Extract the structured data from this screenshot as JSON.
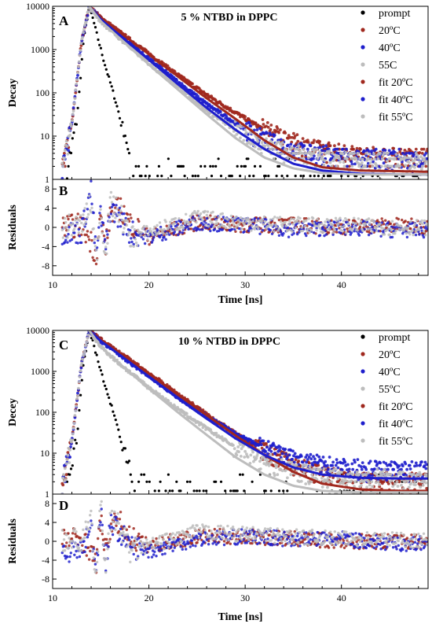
{
  "chart_data": [
    {
      "type": "scatter",
      "panel_label": "A",
      "title": "5 % NTBD in DPPC",
      "xlabel": "",
      "ylabel": "Decay",
      "yscale": "log",
      "xlim": [
        10,
        49
      ],
      "ylim": [
        1,
        10000
      ],
      "yticks": [
        "1",
        "10",
        "100",
        "1000",
        "10000"
      ],
      "legend": {
        "placement": "top-right",
        "entries": [
          {
            "label": "prompt",
            "color": "#000000"
          },
          {
            "label": "20ºC",
            "color": "#a0281e"
          },
          {
            "label": "40ºC",
            "color": "#1e1ecc"
          },
          {
            "label": "55C",
            "color": "#bdbdbd"
          },
          {
            "label": "fit 20ºC",
            "color": "#a0281e"
          },
          {
            "label": "fit 40ºC",
            "color": "#1e1ecc"
          },
          {
            "label": "fit 55ºC",
            "color": "#bdbdbd"
          }
        ]
      },
      "series": [
        {
          "name": "prompt",
          "color": "#000000",
          "x": [
            11.5,
            12.5,
            13.2,
            13.8,
            14.2,
            14.8,
            15.5,
            16.2,
            16.8,
            17.3,
            17.8,
            18.3,
            19,
            20,
            22,
            25,
            28,
            32,
            36,
            40,
            45,
            48
          ],
          "y": [
            1.5,
            20,
            1500,
            10000,
            5000,
            1500,
            400,
            120,
            40,
            12,
            5,
            3,
            2.5,
            2.2,
            2,
            2.2,
            2,
            2.2,
            2,
            2,
            2,
            2
          ]
        },
        {
          "name": "20ºC",
          "color": "#a0281e",
          "x": [
            11,
            12,
            13,
            13.8,
            15,
            17,
            20,
            23,
            26,
            29,
            32,
            35,
            38,
            42,
            46,
            49
          ],
          "y": [
            1.5,
            20,
            1500,
            10000,
            5500,
            2500,
            800,
            260,
            90,
            35,
            14,
            7,
            4.5,
            3.5,
            3.2,
            3
          ]
        },
        {
          "name": "40ºC",
          "color": "#1e1ecc",
          "x": [
            11,
            12,
            13,
            13.8,
            15,
            17,
            20,
            23,
            26,
            29,
            32,
            35,
            38,
            42,
            46,
            49
          ],
          "y": [
            1.5,
            20,
            1500,
            10000,
            5000,
            2100,
            600,
            180,
            55,
            20,
            8,
            4.5,
            3.5,
            3,
            2.8,
            2.7
          ]
        },
        {
          "name": "55C",
          "color": "#bdbdbd",
          "x": [
            11,
            12,
            13,
            13.8,
            15,
            17,
            20,
            23,
            26,
            29,
            32,
            35,
            38,
            42,
            46,
            49
          ],
          "y": [
            1.5,
            20,
            1500,
            10000,
            4500,
            1800,
            480,
            140,
            40,
            14,
            6,
            3.5,
            2.8,
            2.5,
            2.4,
            2.3
          ]
        },
        {
          "name": "fit 20ºC",
          "color": "#a0281e",
          "x": [
            13.8,
            15,
            17,
            20,
            23,
            26,
            29,
            32,
            35,
            38,
            42,
            46,
            49
          ],
          "y": [
            10000,
            5500,
            2500,
            780,
            240,
            75,
            25,
            8,
            3.2,
            1.9,
            1.6,
            1.55,
            1.5
          ]
        },
        {
          "name": "fit 40ºC",
          "color": "#1e1ecc",
          "x": [
            13.8,
            15,
            17,
            20,
            23,
            26,
            29,
            32,
            35,
            38,
            42,
            46,
            49
          ],
          "y": [
            10000,
            5000,
            2100,
            580,
            160,
            45,
            14,
            5,
            2.3,
            1.6,
            1.35,
            1.3,
            1.3
          ]
        },
        {
          "name": "fit 55ºC",
          "color": "#bdbdbd",
          "x": [
            13.8,
            15,
            17,
            20,
            23,
            26,
            29,
            32,
            35,
            38,
            42,
            46,
            49
          ],
          "y": [
            10000,
            4500,
            1800,
            450,
            120,
            32,
            9,
            3.2,
            1.8,
            1.4,
            1.3,
            1.3,
            1.3
          ]
        }
      ]
    },
    {
      "type": "scatter",
      "panel_label": "B",
      "xlabel": "Time [ns]",
      "ylabel": "Residuals",
      "xlim": [
        10,
        49
      ],
      "ylim": [
        -10,
        10
      ],
      "xticks": [
        10,
        20,
        30,
        40
      ],
      "yticks": [
        -8,
        -4,
        0,
        4,
        8
      ],
      "series": [
        {
          "name": "20ºC",
          "color": "#a0281e",
          "x": [
            11,
            13,
            14,
            14.5,
            15,
            15.5,
            16,
            17,
            18,
            20,
            25,
            30,
            35,
            40,
            45,
            49
          ],
          "y": [
            0,
            0.5,
            -3,
            -6,
            2,
            -4,
            3,
            4,
            1,
            -2,
            1,
            0.5,
            0.5,
            0,
            0.5,
            0
          ]
        },
        {
          "name": "40ºC",
          "color": "#1e1ecc",
          "x": [
            11,
            13,
            14,
            14.5,
            15,
            15.5,
            16,
            17,
            18,
            20,
            25,
            30,
            35,
            40,
            45,
            49
          ],
          "y": [
            -1,
            -1,
            8,
            -6,
            3,
            -5,
            4,
            2,
            -1,
            -2,
            1,
            0.5,
            -0.5,
            0,
            -0.5,
            -0.5
          ]
        },
        {
          "name": "55C",
          "color": "#bdbdbd",
          "x": [
            11,
            13,
            14,
            14.5,
            15,
            15.5,
            16,
            17,
            18,
            20,
            25,
            30,
            35,
            40,
            45,
            49
          ],
          "y": [
            0,
            0.5,
            5,
            -7,
            4,
            -6,
            5,
            3,
            -2,
            -1,
            2,
            1,
            0.5,
            0.5,
            0,
            0
          ]
        }
      ]
    },
    {
      "type": "scatter",
      "panel_label": "C",
      "title": "10 % NTBD in DPPC",
      "xlabel": "",
      "ylabel": "Decey",
      "yscale": "log",
      "xlim": [
        10,
        49
      ],
      "ylim": [
        1,
        10000
      ],
      "yticks": [
        "1",
        "10",
        "100",
        "1000",
        "10000"
      ],
      "legend": {
        "placement": "top-right",
        "entries": [
          {
            "label": "prompt",
            "color": "#000000"
          },
          {
            "label": "20ºC",
            "color": "#a0281e"
          },
          {
            "label": "40ºC",
            "color": "#1e1ecc"
          },
          {
            "label": "55ºC",
            "color": "#bdbdbd"
          },
          {
            "label": "fit 20ºC",
            "color": "#a0281e"
          },
          {
            "label": "fit 40ºC",
            "color": "#1e1ecc"
          },
          {
            "label": "fit 55ºC",
            "color": "#bdbdbd"
          }
        ]
      },
      "series": [
        {
          "name": "prompt",
          "color": "#000000",
          "x": [
            11.5,
            12.5,
            13.2,
            13.8,
            14.2,
            14.8,
            15.5,
            16.2,
            16.8,
            17.3,
            17.8,
            18.3,
            19,
            20,
            22,
            25,
            28,
            32,
            36,
            40,
            45,
            48
          ],
          "y": [
            1.5,
            20,
            1500,
            10000,
            5000,
            1500,
            400,
            120,
            40,
            12,
            5,
            3,
            2.5,
            2.2,
            2,
            2.2,
            2,
            2.2,
            2,
            2,
            2,
            2
          ]
        },
        {
          "name": "20ºC",
          "color": "#a0281e",
          "x": [
            11,
            12,
            13,
            13.8,
            15,
            17,
            20,
            23,
            26,
            29,
            32,
            35,
            38,
            42,
            46,
            49
          ],
          "y": [
            1.5,
            20,
            1500,
            10000,
            6000,
            2800,
            900,
            280,
            90,
            30,
            11,
            5,
            3,
            2.2,
            2,
            2
          ]
        },
        {
          "name": "40ºC",
          "color": "#1e1ecc",
          "x": [
            11,
            12,
            13,
            13.8,
            15,
            17,
            20,
            23,
            26,
            29,
            32,
            35,
            38,
            42,
            46,
            49
          ],
          "y": [
            2,
            20,
            1500,
            10000,
            5500,
            2500,
            760,
            230,
            80,
            30,
            13,
            7,
            5,
            4,
            3.8,
            3.7
          ]
        },
        {
          "name": "55ºC",
          "color": "#bdbdbd",
          "x": [
            11,
            12,
            13,
            13.8,
            15,
            17,
            20,
            23,
            26,
            29,
            32,
            35,
            38,
            42,
            46,
            49
          ],
          "y": [
            1.5,
            20,
            1500,
            10000,
            4000,
            1500,
            400,
            120,
            40,
            14,
            6,
            3.5,
            2.6,
            2.3,
            2.2,
            2.1
          ]
        },
        {
          "name": "fit 20ºC",
          "color": "#a0281e",
          "x": [
            13.8,
            15,
            17,
            20,
            23,
            26,
            29,
            32,
            35,
            38,
            42,
            46,
            49
          ],
          "y": [
            10000,
            6000,
            2800,
            880,
            270,
            85,
            27,
            9,
            3.5,
            1.8,
            1.3,
            1.2,
            1.2
          ]
        },
        {
          "name": "fit 40ºC",
          "color": "#1e1ecc",
          "x": [
            13.8,
            15,
            17,
            20,
            23,
            26,
            29,
            32,
            35,
            38,
            42,
            46,
            49
          ],
          "y": [
            10000,
            5500,
            2500,
            740,
            220,
            70,
            23,
            9,
            4.5,
            3,
            2.5,
            2.4,
            2.4
          ]
        },
        {
          "name": "fit 55ºC",
          "color": "#bdbdbd",
          "x": [
            13.8,
            15,
            17,
            20,
            23,
            26,
            29,
            32,
            35,
            38,
            42,
            46,
            49
          ],
          "y": [
            10000,
            4000,
            1500,
            380,
            100,
            28,
            8,
            3,
            1.6,
            1.2,
            1.1,
            1.1,
            1.1
          ]
        }
      ]
    },
    {
      "type": "scatter",
      "panel_label": "D",
      "xlabel": "Time [ns]",
      "ylabel": "Residuals",
      "xlim": [
        10,
        49
      ],
      "ylim": [
        -10,
        10
      ],
      "xticks": [
        10,
        20,
        30,
        40
      ],
      "yticks": [
        -8,
        -4,
        0,
        4,
        8
      ],
      "series": [
        {
          "name": "20ºC",
          "color": "#a0281e",
          "x": [
            11,
            13,
            14,
            14.5,
            15,
            15.5,
            16,
            17,
            18,
            20,
            25,
            30,
            35,
            40,
            45,
            49
          ],
          "y": [
            0.5,
            0.5,
            -2,
            -5,
            5,
            -3,
            3,
            4,
            1,
            -1,
            1,
            1,
            0.5,
            0,
            0,
            0
          ]
        },
        {
          "name": "40ºC",
          "color": "#1e1ecc",
          "x": [
            11,
            13,
            14,
            14.5,
            15,
            15.5,
            16,
            17,
            18,
            20,
            25,
            30,
            35,
            40,
            45,
            49
          ],
          "y": [
            -2,
            -2,
            3,
            -6,
            7,
            -5,
            4,
            2,
            -1,
            -2,
            0.5,
            1,
            0.5,
            0.5,
            -0.5,
            -0.5
          ]
        },
        {
          "name": "55ºC",
          "color": "#bdbdbd",
          "x": [
            11,
            13,
            14,
            14.5,
            15,
            15.5,
            16,
            17,
            18,
            20,
            25,
            30,
            35,
            40,
            45,
            49
          ],
          "y": [
            0.5,
            0,
            4,
            -8,
            8,
            -6,
            5,
            3,
            -2,
            -1,
            2,
            1.5,
            1,
            0.5,
            0.5,
            0
          ]
        }
      ]
    }
  ]
}
